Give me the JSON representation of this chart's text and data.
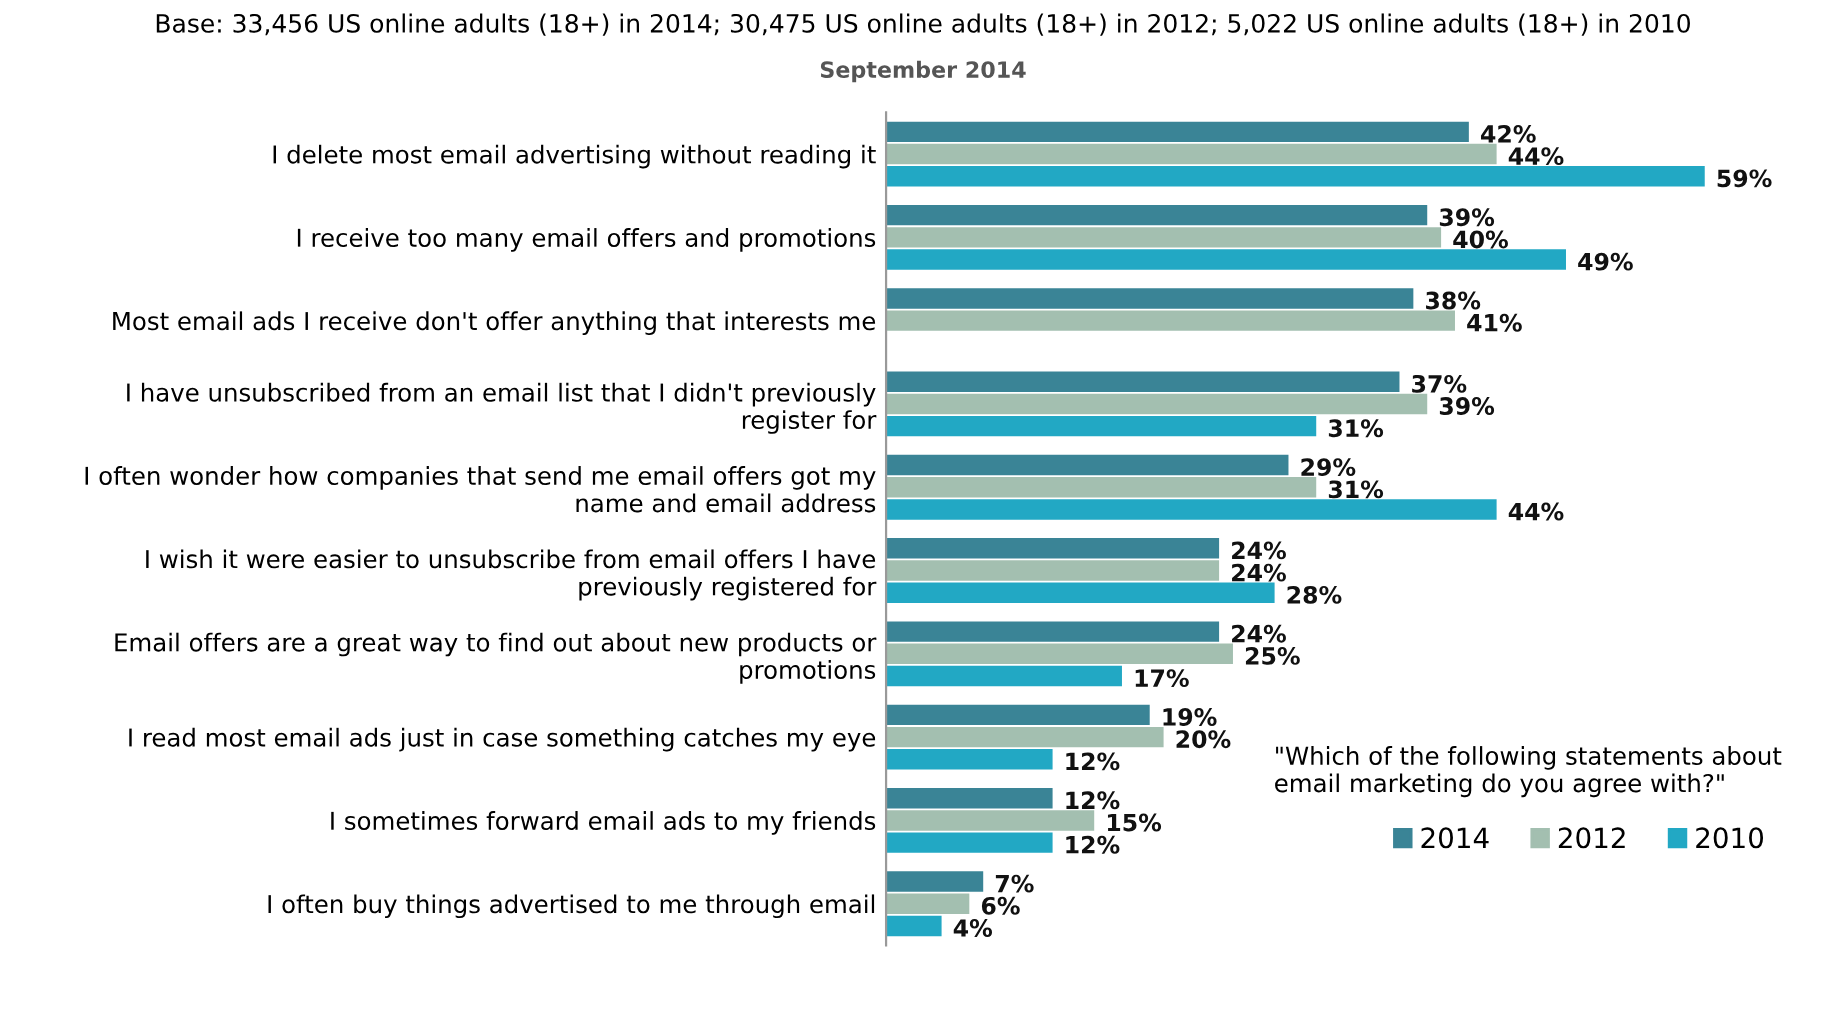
{
  "chart_data": {
    "type": "bar",
    "orientation": "horizontal",
    "title": "Base: 33,456 US online adults (18+) in 2014; 30,475 US online adults (18+) in 2012; 5,022 US online adults (18+) in 2010",
    "subtitle": "September 2014",
    "categories": [
      "I delete most email advertising without reading it",
      "I receive too many email offers and promotions",
      "Most email ads I receive don't offer anything that interests me",
      "I have unsubscribed from an email list that I didn't previously\nregister for",
      "I often wonder how companies that send me email offers got my\nname and email address",
      "I wish it were easier to unsubscribe from email offers I have\npreviously registered for",
      "Email offers are a great way to find out about new products or\npromotions",
      "I read most email ads just in case something catches my eye",
      "I sometimes forward email ads to my friends",
      "I often buy things advertised to me through email"
    ],
    "series": [
      {
        "name": "2014",
        "color": "#3a8496",
        "values": [
          42,
          39,
          38,
          37,
          29,
          24,
          24,
          19,
          12,
          7
        ],
        "value_labels": [
          "42%",
          "39%",
          "38%",
          "37%",
          "29%",
          "24%",
          "24%",
          "19%",
          "12%",
          "7%"
        ]
      },
      {
        "name": "2012",
        "color": "#a3bfb0",
        "values": [
          44,
          40,
          41,
          39,
          31,
          24,
          25,
          20,
          15,
          6
        ],
        "value_labels": [
          "44%",
          "40%",
          "41%",
          "39%",
          "31%",
          "24%",
          "25%",
          "20%",
          "15%",
          "6%"
        ]
      },
      {
        "name": "2010",
        "color": "#22a8c4",
        "values": [
          59,
          49,
          null,
          31,
          44,
          28,
          17,
          12,
          12,
          4
        ],
        "value_labels": [
          "59%",
          "49%",
          null,
          "31%",
          "44%",
          "28%",
          "17%",
          "12%",
          "12%",
          "4%"
        ]
      }
    ],
    "tick_labels": "y",
    "grid": false,
    "legend": "bottom right",
    "annotations": [
      "\"Which of the following statements about\nemail marketing do you agree with?\""
    ]
  }
}
